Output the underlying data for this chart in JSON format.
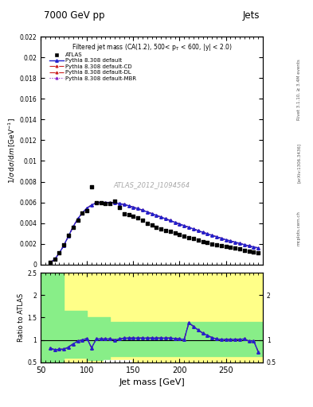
{
  "title_top": "7000 GeV pp",
  "title_top_right": "Jets",
  "annotation": "Filtered jet mass (CA(1.2), 500< p$_T$ < 600, |y| < 2.0)",
  "watermark": "ATLAS_2012_I1094564",
  "xlabel": "Jet mass [GeV]",
  "ylabel": "1/σ dσ/dm [GeV⁻¹]",
  "ylabel_ratio": "Ratio to ATLAS",
  "right_label1": "Rivet 3.1.10, ≥ 3.4M events",
  "right_label2": "[arXiv:1306.3436]",
  "right_label3": "mcplots.cern.ch",
  "xlim": [
    50,
    290
  ],
  "atlas_x": [
    60,
    65,
    70,
    75,
    80,
    85,
    90,
    95,
    100,
    105,
    110,
    115,
    120,
    125,
    130,
    135,
    140,
    145,
    150,
    155,
    160,
    165,
    170,
    175,
    180,
    185,
    190,
    195,
    200,
    205,
    210,
    215,
    220,
    225,
    230,
    235,
    240,
    245,
    250,
    255,
    260,
    265,
    270,
    275,
    280,
    285
  ],
  "atlas_y": [
    0.0002,
    0.00055,
    0.0011,
    0.0019,
    0.0028,
    0.0036,
    0.0043,
    0.005,
    0.0052,
    0.0075,
    0.006,
    0.00595,
    0.0059,
    0.0059,
    0.00615,
    0.0055,
    0.0049,
    0.0048,
    0.00465,
    0.0045,
    0.0043,
    0.004,
    0.0038,
    0.0036,
    0.0034,
    0.0033,
    0.0032,
    0.00305,
    0.0029,
    0.00275,
    0.0026,
    0.00248,
    0.00235,
    0.00223,
    0.00213,
    0.002,
    0.0019,
    0.00183,
    0.00175,
    0.00167,
    0.00157,
    0.0015,
    0.0014,
    0.00132,
    0.00124,
    0.00115
  ],
  "pythia_x": [
    60,
    65,
    70,
    75,
    80,
    85,
    90,
    95,
    100,
    105,
    110,
    115,
    120,
    125,
    130,
    135,
    140,
    145,
    150,
    155,
    160,
    165,
    170,
    175,
    180,
    185,
    190,
    195,
    200,
    205,
    210,
    215,
    220,
    225,
    230,
    235,
    240,
    245,
    250,
    255,
    260,
    265,
    270,
    275,
    280,
    285
  ],
  "pythia_default_y": [
    0.00016,
    0.0005,
    0.0011,
    0.00185,
    0.00275,
    0.00365,
    0.0044,
    0.005,
    0.00545,
    0.00575,
    0.00595,
    0.006,
    0.006,
    0.00598,
    0.00595,
    0.0059,
    0.0058,
    0.00568,
    0.00554,
    0.0054,
    0.00525,
    0.00508,
    0.00492,
    0.00475,
    0.00458,
    0.00442,
    0.00425,
    0.00408,
    0.00392,
    0.00375,
    0.0036,
    0.00344,
    0.00328,
    0.00312,
    0.00297,
    0.00282,
    0.00268,
    0.00254,
    0.0024,
    0.00228,
    0.00216,
    0.00204,
    0.00192,
    0.0018,
    0.0017,
    0.0016
  ],
  "ratio_default_y": [
    0.82,
    0.78,
    0.79,
    0.79,
    0.84,
    0.91,
    0.97,
    1.0,
    1.03,
    0.82,
    1.02,
    1.02,
    1.02,
    1.02,
    1.0,
    1.02,
    1.04,
    1.04,
    1.04,
    1.04,
    1.04,
    1.04,
    1.04,
    1.04,
    1.04,
    1.04,
    1.04,
    1.03,
    1.02,
    1.01,
    1.38,
    1.3,
    1.22,
    1.15,
    1.1,
    1.05,
    1.02,
    1.01,
    1.01,
    1.01,
    1.01,
    1.01,
    1.02,
    0.97,
    0.98,
    0.73
  ],
  "green_band_x": [
    50,
    75,
    100,
    125,
    150,
    200,
    250,
    290
  ],
  "green_band_top": [
    2.5,
    1.65,
    1.5,
    1.4,
    1.4,
    1.4,
    1.4,
    1.4
  ],
  "green_band_bot": [
    0.5,
    0.6,
    0.55,
    0.63,
    0.63,
    0.63,
    0.63,
    0.63
  ],
  "yellow_color": "#ffff88",
  "green_color": "#88ee88",
  "color_atlas": "#000000",
  "color_default": "#2222cc",
  "color_cd": "#cc2222",
  "color_dl": "#cc2222",
  "color_mbr": "#8822cc",
  "bg_color": "#ffffff"
}
